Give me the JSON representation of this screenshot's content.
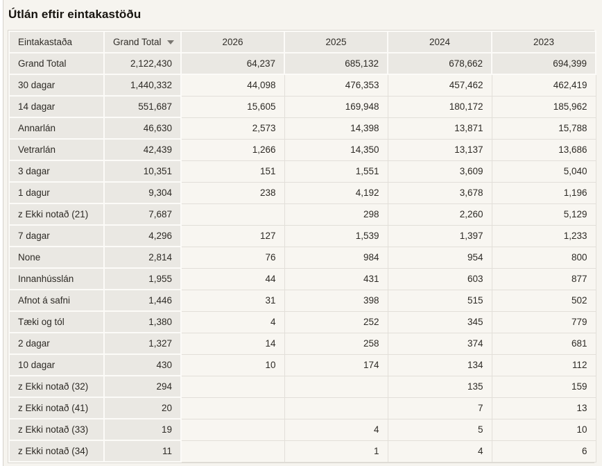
{
  "title": "Útlán eftir eintakastöðu",
  "sort": {
    "column": "Grand Total",
    "direction": "descending"
  },
  "colors": {
    "page_bg": "#f6f4ef",
    "shaded_cell_bg": "#eae8e3",
    "light_cell_bg": "#f8f6f1",
    "white_separator": "#fcfbf8",
    "grid_line": "#e2dfd9",
    "outer_border": "#dbd8d2",
    "title_text": "#17140f",
    "cell_text": "#2d2a25",
    "sort_icon": "#797671"
  },
  "table": {
    "columns": [
      {
        "key": "eintakastada",
        "label": "Eintakastaða",
        "sorted": false
      },
      {
        "key": "grand-total",
        "label": "Grand Total",
        "sorted": true,
        "sort_direction": "descending"
      },
      {
        "key": "2026",
        "label": "2026",
        "sorted": false
      },
      {
        "key": "2025",
        "label": "2025",
        "sorted": false
      },
      {
        "key": "2024",
        "label": "2024",
        "sorted": false
      },
      {
        "key": "2023",
        "label": "2023",
        "sorted": false
      }
    ],
    "rows": [
      {
        "label": "Grand Total",
        "is_total": true,
        "values": [
          "2,122,430",
          "64,237",
          "685,132",
          "678,662",
          "694,399"
        ]
      },
      {
        "label": "30 dagar",
        "is_total": false,
        "values": [
          "1,440,332",
          "44,098",
          "476,353",
          "457,462",
          "462,419"
        ]
      },
      {
        "label": "14 dagar",
        "is_total": false,
        "values": [
          "551,687",
          "15,605",
          "169,948",
          "180,172",
          "185,962"
        ]
      },
      {
        "label": "Annarlán",
        "is_total": false,
        "values": [
          "46,630",
          "2,573",
          "14,398",
          "13,871",
          "15,788"
        ]
      },
      {
        "label": "Vetrarlán",
        "is_total": false,
        "values": [
          "42,439",
          "1,266",
          "14,350",
          "13,137",
          "13,686"
        ]
      },
      {
        "label": "3 dagar",
        "is_total": false,
        "values": [
          "10,351",
          "151",
          "1,551",
          "3,609",
          "5,040"
        ]
      },
      {
        "label": "1 dagur",
        "is_total": false,
        "values": [
          "9,304",
          "238",
          "4,192",
          "3,678",
          "1,196"
        ]
      },
      {
        "label": "z Ekki notað (21)",
        "is_total": false,
        "values": [
          "7,687",
          "",
          "298",
          "2,260",
          "5,129"
        ]
      },
      {
        "label": "7 dagar",
        "is_total": false,
        "values": [
          "4,296",
          "127",
          "1,539",
          "1,397",
          "1,233"
        ]
      },
      {
        "label": "None",
        "is_total": false,
        "values": [
          "2,814",
          "76",
          "984",
          "954",
          "800"
        ]
      },
      {
        "label": "Innanhússlán",
        "is_total": false,
        "values": [
          "1,955",
          "44",
          "431",
          "603",
          "877"
        ]
      },
      {
        "label": "Afnot á safni",
        "is_total": false,
        "values": [
          "1,446",
          "31",
          "398",
          "515",
          "502"
        ]
      },
      {
        "label": "Tæki og tól",
        "is_total": false,
        "values": [
          "1,380",
          "4",
          "252",
          "345",
          "779"
        ]
      },
      {
        "label": "2 dagar",
        "is_total": false,
        "values": [
          "1,327",
          "14",
          "258",
          "374",
          "681"
        ]
      },
      {
        "label": "10 dagar",
        "is_total": false,
        "values": [
          "430",
          "10",
          "174",
          "134",
          "112"
        ]
      },
      {
        "label": "z Ekki notað (32)",
        "is_total": false,
        "values": [
          "294",
          "",
          "",
          "135",
          "159"
        ]
      },
      {
        "label": "z Ekki notað (41)",
        "is_total": false,
        "values": [
          "20",
          "",
          "",
          "7",
          "13"
        ]
      },
      {
        "label": "z Ekki notað (33)",
        "is_total": false,
        "values": [
          "19",
          "",
          "4",
          "5",
          "10"
        ]
      },
      {
        "label": "z Ekki notað (34)",
        "is_total": false,
        "values": [
          "11",
          "",
          "1",
          "4",
          "6"
        ]
      }
    ]
  },
  "chart_data": {
    "type": "table",
    "title": "Útlán eftir eintakastöðu",
    "categories": [
      "Grand Total",
      "2026",
      "2025",
      "2024",
      "2023"
    ],
    "series": [
      {
        "name": "Grand Total",
        "values": [
          2122430,
          64237,
          685132,
          678662,
          694399
        ]
      },
      {
        "name": "30 dagar",
        "values": [
          1440332,
          44098,
          476353,
          457462,
          462419
        ]
      },
      {
        "name": "14 dagar",
        "values": [
          551687,
          15605,
          169948,
          180172,
          185962
        ]
      },
      {
        "name": "Annarlán",
        "values": [
          46630,
          2573,
          14398,
          13871,
          15788
        ]
      },
      {
        "name": "Vetrarlán",
        "values": [
          42439,
          1266,
          14350,
          13137,
          13686
        ]
      },
      {
        "name": "3 dagar",
        "values": [
          10351,
          151,
          1551,
          3609,
          5040
        ]
      },
      {
        "name": "1 dagur",
        "values": [
          9304,
          238,
          4192,
          3678,
          1196
        ]
      },
      {
        "name": "z Ekki notað (21)",
        "values": [
          7687,
          null,
          298,
          2260,
          5129
        ]
      },
      {
        "name": "7 dagar",
        "values": [
          4296,
          127,
          1539,
          1397,
          1233
        ]
      },
      {
        "name": "None",
        "values": [
          2814,
          76,
          984,
          954,
          800
        ]
      },
      {
        "name": "Innanhússlán",
        "values": [
          1955,
          44,
          431,
          603,
          877
        ]
      },
      {
        "name": "Afnot á safni",
        "values": [
          1446,
          31,
          398,
          515,
          502
        ]
      },
      {
        "name": "Tæki og tól",
        "values": [
          1380,
          4,
          252,
          345,
          779
        ]
      },
      {
        "name": "2 dagar",
        "values": [
          1327,
          14,
          258,
          374,
          681
        ]
      },
      {
        "name": "10 dagar",
        "values": [
          430,
          10,
          174,
          134,
          112
        ]
      },
      {
        "name": "z Ekki notað (32)",
        "values": [
          294,
          null,
          null,
          135,
          159
        ]
      },
      {
        "name": "z Ekki notað (41)",
        "values": [
          20,
          null,
          null,
          7,
          13
        ]
      },
      {
        "name": "z Ekki notað (33)",
        "values": [
          19,
          null,
          4,
          5,
          10
        ]
      },
      {
        "name": "z Ekki notað (34)",
        "values": [
          11,
          null,
          1,
          4,
          6
        ]
      }
    ]
  }
}
